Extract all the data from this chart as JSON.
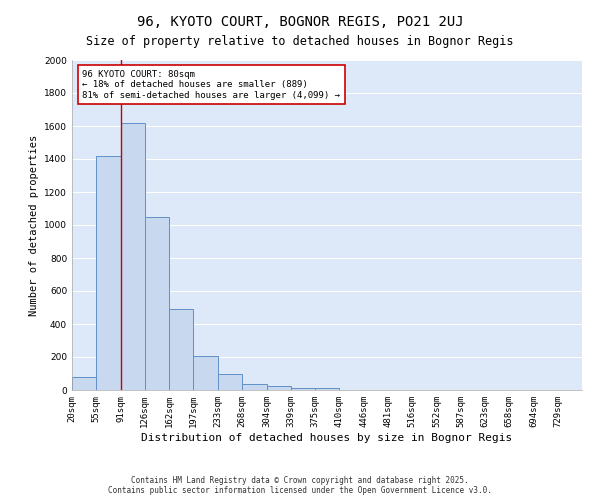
{
  "title": "96, KYOTO COURT, BOGNOR REGIS, PO21 2UJ",
  "subtitle": "Size of property relative to detached houses in Bognor Regis",
  "xlabel": "Distribution of detached houses by size in Bognor Regis",
  "ylabel": "Number of detached properties",
  "bar_labels": [
    "20sqm",
    "55sqm",
    "91sqm",
    "126sqm",
    "162sqm",
    "197sqm",
    "233sqm",
    "268sqm",
    "304sqm",
    "339sqm",
    "375sqm",
    "410sqm",
    "446sqm",
    "481sqm",
    "516sqm",
    "552sqm",
    "587sqm",
    "623sqm",
    "658sqm",
    "694sqm",
    "729sqm"
  ],
  "bar_values": [
    80,
    1420,
    1620,
    1050,
    490,
    205,
    100,
    35,
    25,
    15,
    15,
    0,
    0,
    0,
    0,
    0,
    0,
    0,
    0,
    0,
    0
  ],
  "bin_edges": [
    20,
    55,
    91,
    126,
    162,
    197,
    233,
    268,
    304,
    339,
    375,
    410,
    446,
    481,
    516,
    552,
    587,
    623,
    658,
    694,
    729
  ],
  "bar_color": "#c8d8ee",
  "bar_edge_color": "#6090c8",
  "ylim": [
    0,
    2000
  ],
  "yticks": [
    0,
    200,
    400,
    600,
    800,
    1000,
    1200,
    1400,
    1600,
    1800,
    2000
  ],
  "property_line_x": 91,
  "annotation_text": "96 KYOTO COURT: 80sqm\n← 18% of detached houses are smaller (889)\n81% of semi-detached houses are larger (4,099) →",
  "annotation_box_color": "#ffffff",
  "annotation_box_edge_color": "#cc0000",
  "plot_bg_color": "#dde8f8",
  "fig_bg_color": "#ffffff",
  "grid_color": "#ffffff",
  "footer_text": "Contains HM Land Registry data © Crown copyright and database right 2025.\nContains public sector information licensed under the Open Government Licence v3.0.",
  "title_fontsize": 10,
  "subtitle_fontsize": 8.5,
  "xlabel_fontsize": 8,
  "ylabel_fontsize": 7.5,
  "tick_fontsize": 6.5,
  "annotation_fontsize": 6.5,
  "footer_fontsize": 5.5
}
